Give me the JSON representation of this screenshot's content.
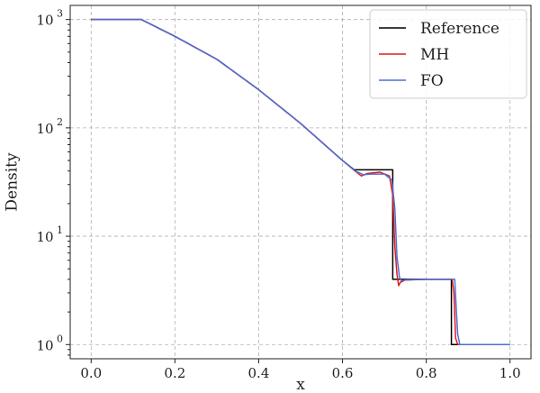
{
  "chart_data": {
    "type": "line",
    "title": "",
    "xlabel": "x",
    "ylabel": "Density",
    "xlim": [
      -0.05,
      1.05
    ],
    "ylim": [
      0.74,
      1350
    ],
    "yscale": "log",
    "grid": true,
    "legend_position": "top-right",
    "x_ticks": [
      0.0,
      0.2,
      0.4,
      0.6,
      0.8,
      1.0
    ],
    "x_tick_labels": [
      "0.0",
      "0.2",
      "0.4",
      "0.6",
      "0.8",
      "1.0"
    ],
    "y_ticks": [
      1,
      10,
      100,
      1000
    ],
    "y_tick_labels": [
      {
        "base": "10",
        "exp": "0"
      },
      {
        "base": "10",
        "exp": "1"
      },
      {
        "base": "10",
        "exp": "2"
      },
      {
        "base": "10",
        "exp": "3"
      }
    ],
    "series": [
      {
        "name": "Reference",
        "color": "#000000",
        "x": [
          0.0,
          0.12,
          0.2,
          0.3,
          0.4,
          0.5,
          0.6,
          0.63,
          0.63,
          0.72,
          0.72,
          0.86,
          0.86,
          1.0
        ],
        "y": [
          1000,
          1000,
          700,
          430,
          225,
          110,
          50,
          40.5,
          41,
          41,
          4.0,
          4.0,
          1.0,
          1.0
        ]
      },
      {
        "name": "MH",
        "color": "#e31a1c",
        "x": [
          0.0,
          0.12,
          0.2,
          0.3,
          0.4,
          0.5,
          0.6,
          0.63,
          0.645,
          0.66,
          0.69,
          0.712,
          0.72,
          0.725,
          0.73,
          0.734,
          0.738,
          0.75,
          0.8,
          0.862,
          0.866,
          0.87,
          0.875,
          1.0
        ],
        "y": [
          1000,
          1000,
          700,
          430,
          225,
          110,
          50,
          40,
          36,
          38,
          39,
          36,
          24,
          8,
          4.5,
          3.5,
          3.75,
          3.95,
          4.0,
          4.0,
          3.0,
          1.15,
          1.0,
          1.0
        ]
      },
      {
        "name": "FO",
        "color": "#4f6fd6",
        "x": [
          0.0,
          0.12,
          0.2,
          0.3,
          0.4,
          0.5,
          0.6,
          0.63,
          0.65,
          0.67,
          0.7,
          0.718,
          0.725,
          0.73,
          0.736,
          0.74,
          0.75,
          0.8,
          0.868,
          0.872,
          0.875,
          0.88,
          1.0
        ],
        "y": [
          1000,
          1000,
          700,
          430,
          225,
          110,
          50,
          40,
          37,
          37.5,
          37.5,
          33,
          18,
          6.5,
          4.2,
          3.9,
          3.95,
          4.0,
          4.0,
          2.0,
          1.25,
          1.0,
          1.0
        ]
      }
    ]
  }
}
